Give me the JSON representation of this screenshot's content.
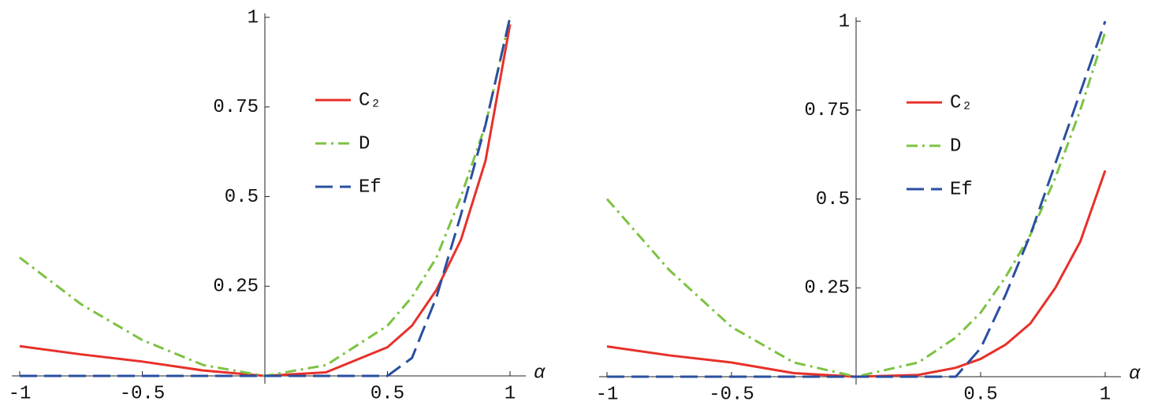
{
  "chart_data": [
    {
      "type": "line",
      "xlabel": "α",
      "x": [
        -1,
        -0.75,
        -0.5,
        -0.25,
        0,
        0.25,
        0.5,
        0.6,
        0.7,
        0.8,
        0.9,
        1
      ],
      "xlim": [
        -1,
        1
      ],
      "ylim": [
        0,
        1
      ],
      "xticks": [
        -1,
        -0.5,
        0.5,
        1
      ],
      "yticks": [
        0.25,
        0.5,
        0.75,
        1
      ],
      "series": [
        {
          "name": "C₂",
          "color": "#e8302a",
          "dash": "solid",
          "values": [
            0.083,
            0.06,
            0.04,
            0.015,
            0,
            0.01,
            0.08,
            0.14,
            0.24,
            0.38,
            0.6,
            0.98
          ]
        },
        {
          "name": "D",
          "color": "#7dc242",
          "dash": "dashdot",
          "values": [
            0.33,
            0.2,
            0.1,
            0.03,
            0,
            0.03,
            0.14,
            0.22,
            0.33,
            0.5,
            0.7,
            1
          ]
        },
        {
          "name": "Ef",
          "color": "#2a4fa0",
          "dash": "dashed",
          "values": [
            0,
            0,
            0,
            0,
            0,
            0,
            0,
            0.05,
            0.22,
            0.45,
            0.7,
            1
          ]
        }
      ]
    },
    {
      "type": "line",
      "xlabel": "α",
      "x": [
        -1,
        -0.75,
        -0.5,
        -0.25,
        0,
        0.25,
        0.4,
        0.5,
        0.6,
        0.7,
        0.8,
        0.9,
        1
      ],
      "xlim": [
        -1,
        1
      ],
      "ylim": [
        0,
        1
      ],
      "xticks": [
        -1,
        -0.5,
        0.5,
        1
      ],
      "yticks": [
        0.25,
        0.5,
        0.75,
        1
      ],
      "series": [
        {
          "name": "C₂",
          "color": "#e8302a",
          "dash": "solid",
          "values": [
            0.085,
            0.06,
            0.04,
            0.01,
            0,
            0.005,
            0.025,
            0.05,
            0.09,
            0.15,
            0.25,
            0.38,
            0.58
          ]
        },
        {
          "name": "D",
          "color": "#7dc242",
          "dash": "dashdot",
          "values": [
            0.5,
            0.3,
            0.14,
            0.04,
            0,
            0.04,
            0.11,
            0.18,
            0.28,
            0.4,
            0.56,
            0.75,
            0.97
          ]
        },
        {
          "name": "Ef",
          "color": "#2a4fa0",
          "dash": "dashed",
          "values": [
            0,
            0,
            0,
            0,
            0,
            0,
            0,
            0.08,
            0.23,
            0.4,
            0.6,
            0.8,
            1
          ]
        }
      ]
    }
  ]
}
